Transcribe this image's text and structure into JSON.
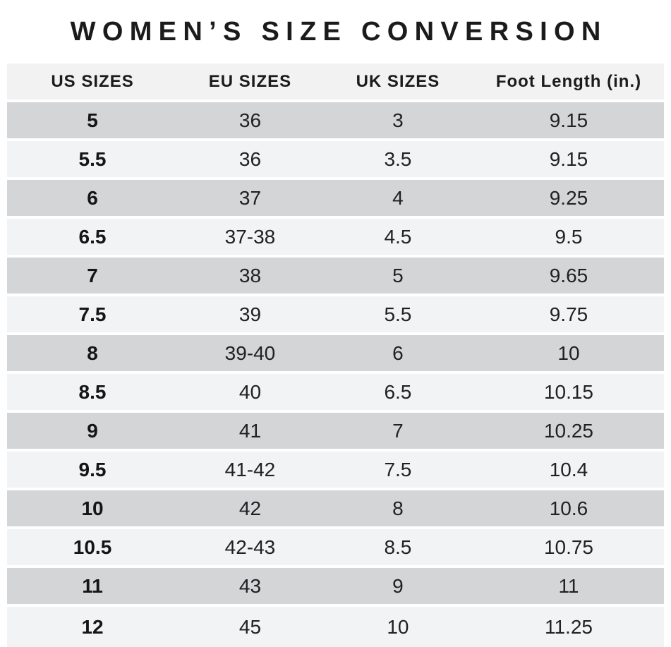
{
  "page": {
    "title": "WOMEN’S SIZE CONVERSION",
    "background": "#ffffff"
  },
  "colors": {
    "row_gray": "#d4d5d7",
    "row_light": "#f2f3f4",
    "header_bg": "#f2f2f3",
    "text": "#1b1b1d"
  },
  "chart_data": {
    "type": "table",
    "title": "WOMEN’S SIZE CONVERSION",
    "columns": [
      "US SIZES",
      "EU SIZES",
      "UK SIZES",
      "Foot Length (in.)"
    ],
    "rows": [
      [
        "5",
        "36",
        "3",
        "9.15"
      ],
      [
        "5.5",
        "36",
        "3.5",
        "9.15"
      ],
      [
        "6",
        "37",
        "4",
        "9.25"
      ],
      [
        "6.5",
        "37-38",
        "4.5",
        "9.5"
      ],
      [
        "7",
        "38",
        "5",
        "9.65"
      ],
      [
        "7.5",
        "39",
        "5.5",
        "9.75"
      ],
      [
        "8",
        "39-40",
        "6",
        "10"
      ],
      [
        "8.5",
        "40",
        "6.5",
        "10.15"
      ],
      [
        "9",
        "41",
        "7",
        "10.25"
      ],
      [
        "9.5",
        "41-42",
        "7.5",
        "10.4"
      ],
      [
        "10",
        "42",
        "8",
        "10.6"
      ],
      [
        "10.5",
        "42-43",
        "8.5",
        "10.75"
      ],
      [
        "11",
        "43",
        "9",
        "11"
      ],
      [
        "12",
        "45",
        "10",
        "11.25"
      ]
    ],
    "layout": {
      "row_striping": [
        "gray",
        "light"
      ],
      "first_column_bold": true,
      "text_align": "center"
    }
  }
}
